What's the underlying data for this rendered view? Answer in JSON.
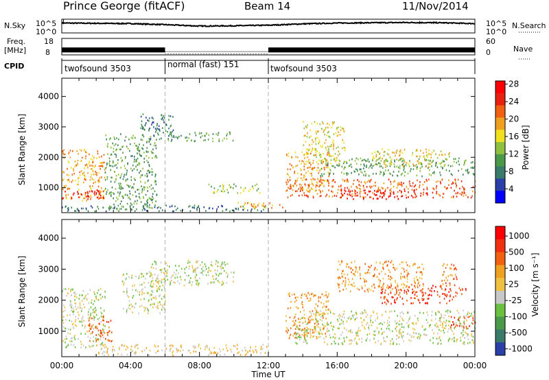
{
  "header": {
    "station": "Prince George (fitACF)",
    "beam": "Beam 14",
    "date": "11/Nov/2014"
  },
  "colors": {
    "axes": "#000000",
    "divider": "#b0b0b0",
    "frame_bg": "#ffffff"
  },
  "chart_data": [
    {
      "type": "line",
      "name": "noise-panel",
      "ylabel_left": "N.Sky",
      "ylabel_right": "N.Search",
      "left_ticks": [
        "10^5",
        "10^0"
      ],
      "right_ticks": [
        "10^5",
        "10^0"
      ],
      "ylim_log10": [
        0,
        5
      ],
      "x": [
        "00:00",
        "02:00",
        "04:00",
        "06:00",
        "08:00",
        "10:00",
        "12:00",
        "14:00",
        "16:00",
        "18:00",
        "20:00",
        "22:00",
        "24:00"
      ],
      "series": [
        {
          "values_log10": [
            3.6,
            3.5,
            3.4,
            3.0,
            2.5,
            2.6,
            2.8,
            3.3,
            3.6,
            3.7,
            3.8,
            3.7,
            3.4
          ],
          "color": "#000000"
        }
      ]
    },
    {
      "type": "line",
      "name": "freq-nave-panel",
      "ylabel_left": [
        "Freq.",
        "[MHz]"
      ],
      "ylabel_right": "Nave",
      "left_ticks": [
        "18",
        "8"
      ],
      "right_ticks": [
        "60",
        "0"
      ],
      "ylim": [
        8,
        18
      ],
      "segments": [
        {
          "start_h": 0.0,
          "end_h": 6.0,
          "freq_mhz": 11.0,
          "label": "twofsound 3503"
        },
        {
          "start_h": 6.0,
          "end_h": 12.0,
          "freq_mhz": 10.0,
          "label": "normal (fast) 151"
        },
        {
          "start_h": 12.0,
          "end_h": 24.0,
          "freq_mhz": 11.0,
          "label": "twofsound 3503"
        }
      ]
    },
    {
      "type": "table",
      "name": "cpid-row",
      "label": "CPID",
      "programs": [
        "twofsound 3503",
        "normal (fast) 151",
        "twofsound 3503"
      ],
      "boundaries_h": [
        0,
        6,
        12,
        24
      ]
    },
    {
      "type": "heatmap",
      "name": "power-panel",
      "ylabel": "Slant Range [km]",
      "y_ticks": [
        1000,
        2000,
        3000,
        4000
      ],
      "ylim": [
        180,
        4600
      ],
      "xlim_h": [
        0,
        24
      ],
      "colorbar": {
        "label": "Power [dB]",
        "ticks": [
          "4",
          "8",
          "12",
          "16",
          "20",
          "24",
          "28"
        ],
        "colors": [
          "#0000ff",
          "#2a3fa8",
          "#3a7a6a",
          "#4a9a4a",
          "#90c040",
          "#f0e020",
          "#f0a020",
          "#f06010",
          "#e82010",
          "#ff0000"
        ]
      },
      "echo_regions": [
        {
          "t0": 0.0,
          "t1": 2.5,
          "r0": 600,
          "r1": 2300,
          "level": 6
        },
        {
          "t0": 0.0,
          "t1": 2.5,
          "r0": 650,
          "r1": 950,
          "level": 9
        },
        {
          "t0": 2.5,
          "t1": 5.5,
          "r0": 300,
          "r1": 2800,
          "level": 3
        },
        {
          "t0": 4.5,
          "t1": 6.5,
          "r0": 2600,
          "r1": 3450,
          "level": 2
        },
        {
          "t0": 6.0,
          "t1": 10.0,
          "r0": 2550,
          "r1": 2850,
          "level": 3
        },
        {
          "t0": 8.5,
          "t1": 11.5,
          "r0": 850,
          "r1": 1150,
          "level": 4
        },
        {
          "t0": 0.0,
          "t1": 12.0,
          "r0": 250,
          "r1": 450,
          "level": 2
        },
        {
          "t0": 10.0,
          "t1": 13.0,
          "r0": 350,
          "r1": 550,
          "level": 6
        },
        {
          "t0": 13.0,
          "t1": 24.0,
          "r0": 700,
          "r1": 1300,
          "level": 7
        },
        {
          "t0": 16.0,
          "t1": 20.5,
          "r0": 650,
          "r1": 950,
          "level": 9
        },
        {
          "t0": 13.0,
          "t1": 15.5,
          "r0": 900,
          "r1": 2200,
          "level": 6
        },
        {
          "t0": 15.0,
          "t1": 24.0,
          "r0": 1400,
          "r1": 2000,
          "level": 3
        },
        {
          "t0": 18.0,
          "t1": 22.5,
          "r0": 1700,
          "r1": 2300,
          "level": 5
        },
        {
          "t0": 14.0,
          "t1": 16.5,
          "r0": 1800,
          "r1": 3200,
          "level": 5
        }
      ]
    },
    {
      "type": "heatmap",
      "name": "velocity-panel",
      "ylabel": "Slant Range [km]",
      "y_ticks": [
        1000,
        2000,
        3000,
        4000
      ],
      "ylim": [
        180,
        4600
      ],
      "xlim_h": [
        0,
        24
      ],
      "colorbar": {
        "label": "Velocity [m s⁻¹]",
        "ticks": [
          "1000",
          "500",
          "100",
          "25",
          "-25",
          "-100",
          "-500",
          "-1000"
        ],
        "colors": [
          "#2a3fa8",
          "#3a7a6a",
          "#4a9a4a",
          "#6ac040",
          "#c8c8c8",
          "#f0c040",
          "#f0a020",
          "#f06010",
          "#f03010",
          "#ff0000"
        ]
      },
      "echo_regions": [
        {
          "t0": 0.0,
          "t1": 2.5,
          "r0": 500,
          "r1": 2400,
          "level": 4
        },
        {
          "t0": 1.5,
          "t1": 3.0,
          "r0": 700,
          "r1": 1500,
          "level": 7
        },
        {
          "t0": 3.5,
          "t1": 6.0,
          "r0": 1600,
          "r1": 2900,
          "level": 4
        },
        {
          "t0": 5.0,
          "t1": 10.0,
          "r0": 2500,
          "r1": 3300,
          "level": 4
        },
        {
          "t0": 2.0,
          "t1": 12.0,
          "r0": 250,
          "r1": 600,
          "level": 5
        },
        {
          "t0": 13.0,
          "t1": 15.5,
          "r0": 800,
          "r1": 2300,
          "level": 6
        },
        {
          "t0": 13.5,
          "t1": 24.0,
          "r0": 600,
          "r1": 1700,
          "level": 4
        },
        {
          "t0": 18.5,
          "t1": 23.5,
          "r0": 1900,
          "r1": 2500,
          "level": 8
        },
        {
          "t0": 22.5,
          "t1": 24.0,
          "r0": 1100,
          "r1": 1500,
          "level": 8
        },
        {
          "t0": 22.0,
          "t1": 23.0,
          "r0": 2500,
          "r1": 3200,
          "level": 7
        },
        {
          "t0": 16.0,
          "t1": 21.0,
          "r0": 2300,
          "r1": 3300,
          "level": 6
        }
      ]
    }
  ],
  "time_axis": {
    "ticks": [
      "00:00",
      "04:00",
      "08:00",
      "12:00",
      "16:00",
      "20:00",
      "00:00"
    ],
    "label": "Time UT"
  },
  "power_title": "Power [dB]",
  "velocity_title": "Velocity [m s⁻¹]"
}
